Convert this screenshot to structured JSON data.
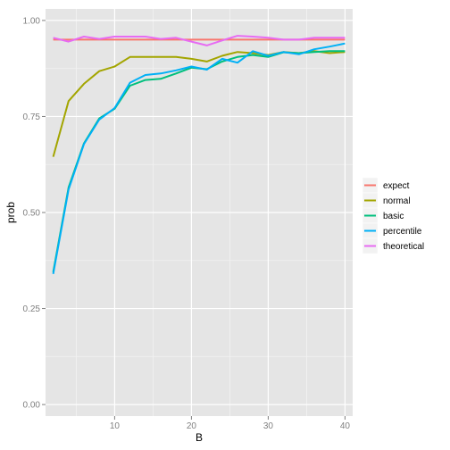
{
  "chart_data": {
    "type": "line",
    "xlabel": "B",
    "ylabel": "prob",
    "xlim": [
      1,
      41
    ],
    "ylim": [
      -0.03,
      1.03
    ],
    "x_ticks": [
      10,
      20,
      30,
      40
    ],
    "x_tick_labels": [
      "10",
      "20",
      "30",
      "40"
    ],
    "y_ticks": [
      0,
      0.25,
      0.5,
      0.75,
      1
    ],
    "y_tick_labels": [
      "0.00",
      "0.25",
      "0.50",
      "0.75",
      "1.00"
    ],
    "x_minor_ticks": [
      5,
      15,
      25,
      35
    ],
    "y_minor_ticks": [
      0.125,
      0.375,
      0.625,
      0.875
    ],
    "grid": true,
    "legend_position": "right",
    "x": [
      2,
      4,
      6,
      8,
      10,
      12,
      14,
      16,
      18,
      20,
      22,
      24,
      26,
      28,
      30,
      32,
      34,
      36,
      38,
      40
    ],
    "series": [
      {
        "name": "expect",
        "color": "#F8766D",
        "values": [
          0.95,
          0.95,
          0.95,
          0.95,
          0.95,
          0.95,
          0.95,
          0.95,
          0.95,
          0.95,
          0.95,
          0.95,
          0.95,
          0.95,
          0.95,
          0.95,
          0.95,
          0.95,
          0.95,
          0.95
        ]
      },
      {
        "name": "normal",
        "color": "#A3A500",
        "values": [
          0.645,
          0.79,
          0.835,
          0.868,
          0.88,
          0.905,
          0.905,
          0.905,
          0.905,
          0.9,
          0.893,
          0.908,
          0.918,
          0.915,
          0.91,
          0.918,
          0.915,
          0.92,
          0.915,
          0.918
        ]
      },
      {
        "name": "basic",
        "color": "#00BF7D",
        "values": [
          0.345,
          0.565,
          0.68,
          0.745,
          0.77,
          0.83,
          0.845,
          0.848,
          0.862,
          0.877,
          0.873,
          0.893,
          0.905,
          0.91,
          0.905,
          0.917,
          0.915,
          0.918,
          0.92,
          0.92
        ]
      },
      {
        "name": "percentile",
        "color": "#00B0F6",
        "values": [
          0.34,
          0.56,
          0.678,
          0.742,
          0.772,
          0.838,
          0.858,
          0.862,
          0.87,
          0.88,
          0.872,
          0.9,
          0.89,
          0.92,
          0.908,
          0.918,
          0.912,
          0.925,
          0.932,
          0.94
        ]
      },
      {
        "name": "theoretical",
        "color": "#E76BF3",
        "values": [
          0.955,
          0.945,
          0.958,
          0.952,
          0.958,
          0.958,
          0.958,
          0.952,
          0.955,
          0.945,
          0.935,
          0.948,
          0.96,
          0.958,
          0.955,
          0.95,
          0.95,
          0.955,
          0.955,
          0.955
        ]
      }
    ]
  }
}
